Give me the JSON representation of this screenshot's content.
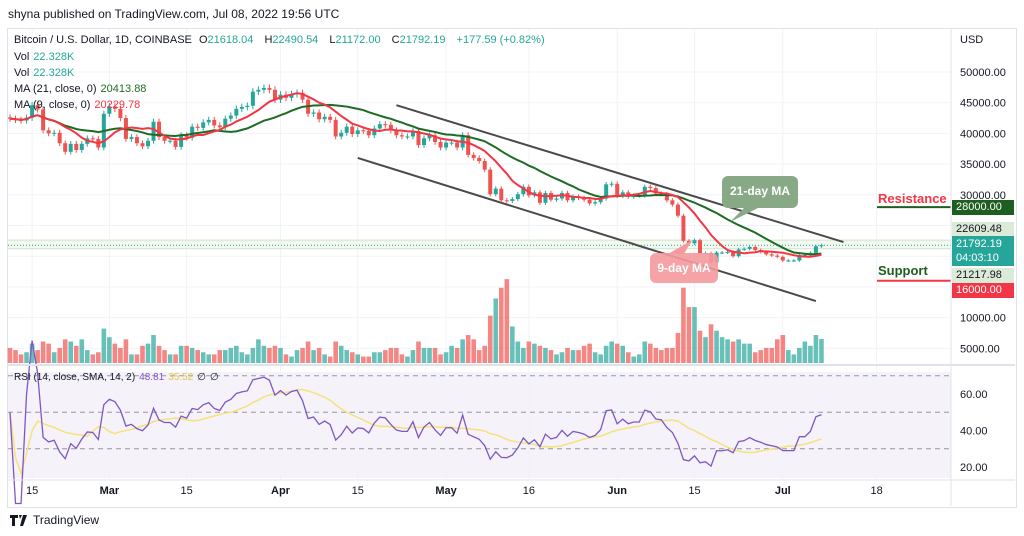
{
  "header": {
    "published": "shyna published on TradingView.com, Jul 08, 2022 19:56 UTC"
  },
  "legend": {
    "symbol": "Bitcoin / U.S. Dollar, 1D, COINBASE",
    "open_label": "O",
    "open": "21618.04",
    "high_label": "H",
    "high": "22490.54",
    "low_label": "L",
    "low": "21172.00",
    "close_label": "C",
    "close": "21792.19",
    "change": "+177.59 (+0.82%)",
    "vol1_label": "Vol",
    "vol1": "22.328K",
    "vol2_label": "Vol",
    "vol2": "22.328K",
    "ma21_label": "MA (21, close, 0)",
    "ma21": "20413.88",
    "ma9_label": "MA (9, close, 0)",
    "ma9": "20229.78",
    "rsi_label": "RSI (14, close, SMA, 14, 2)",
    "rsi": "48.81",
    "rsi_sma": "35.52",
    "rsi_extra1": "∅",
    "rsi_extra2": "∅"
  },
  "price_axis": {
    "currency": "USD",
    "labels": [
      "50000.00",
      "45000.00",
      "40000.00",
      "35000.00",
      "30000.00",
      "10000.00",
      "5000.00"
    ],
    "values": [
      50000,
      45000,
      40000,
      35000,
      30000,
      10000,
      5000
    ]
  },
  "rsi_axis": {
    "labels": [
      "60.00",
      "40.00",
      "20.00"
    ],
    "values": [
      60,
      40,
      20
    ],
    "bands": [
      70,
      50,
      30
    ]
  },
  "price_tags": {
    "resistance": "28000.00",
    "high": "22609.48",
    "last": "21792.19",
    "countdown": "04:03:10",
    "low": "21217.98",
    "support": "16000.00"
  },
  "annotations": {
    "resistance": "Resistance",
    "support": "Support",
    "ma21_callout": "21-day MA",
    "ma9_callout": "9-day MA"
  },
  "colors": {
    "up": "#26a69a",
    "down": "#ef5350",
    "ma21": "#1e6b23",
    "ma9": "#f23645",
    "rsi": "#7e57c2",
    "rsi_sma": "#f5e27a",
    "resistance_line": "#1e5e20",
    "support_line": "#f23645"
  },
  "footer": {
    "brand": "TradingView"
  },
  "chart_data": {
    "type": "candlestick",
    "title": "Bitcoin / U.S. Dollar, 1D, COINBASE",
    "x_ticks": [
      [
        "2022-02-15",
        "15"
      ],
      [
        "2022-03-01",
        "Mar"
      ],
      [
        "2022-03-15",
        "15"
      ],
      [
        "2022-04-01",
        "Apr"
      ],
      [
        "2022-04-15",
        "15"
      ],
      [
        "2022-05-01",
        "May"
      ],
      [
        "2022-05-16",
        "16"
      ],
      [
        "2022-06-01",
        "Jun"
      ],
      [
        "2022-06-15",
        "15"
      ],
      [
        "2022-07-01",
        "Jul"
      ],
      [
        "2022-07-18",
        "18"
      ]
    ],
    "date_range": [
      "2022-02-11",
      "2022-07-08"
    ],
    "ylim": [
      0,
      52000
    ],
    "grid": true,
    "closes": [
      42400,
      42200,
      42100,
      42550,
      44600,
      43900,
      40500,
      40000,
      40100,
      38400,
      37000,
      38300,
      37300,
      38300,
      39200,
      39100,
      37700,
      43200,
      44400,
      44000,
      42500,
      39100,
      39400,
      38400,
      37900,
      38800,
      41900,
      39400,
      38800,
      38800,
      37800,
      39700,
      39300,
      41100,
      40900,
      41800,
      42200,
      41300,
      41000,
      42400,
      42900,
      44000,
      44300,
      44500,
      46800,
      47100,
      47400,
      47100,
      45500,
      46300,
      45800,
      46400,
      46600,
      45500,
      43200,
      43400,
      42300,
      42700,
      42200,
      39500,
      40100,
      41100,
      39900,
      40500,
      40400,
      39700,
      40800,
      41500,
      41400,
      40500,
      39700,
      39500,
      39500,
      40400,
      38100,
      39200,
      39700,
      38600,
      37700,
      38500,
      38500,
      37700,
      39700,
      36500,
      36000,
      35500,
      34100,
      30100,
      31000,
      29100,
      29000,
      29300,
      30100,
      31300,
      29900,
      30400,
      28700,
      30300,
      29200,
      29400,
      30300,
      29100,
      29700,
      29500,
      29200,
      28600,
      28800,
      29400,
      31700,
      31800,
      29800,
      30400,
      29700,
      29900,
      29900,
      31300,
      31100,
      30200,
      30100,
      29100,
      28400,
      26600,
      22500,
      22100,
      22600,
      20400,
      20500,
      19000,
      20600,
      20600,
      20700,
      20000,
      21100,
      21200,
      21500,
      21000,
      20700,
      20300,
      20100,
      19900,
      19300,
      19300,
      19300,
      20200,
      20200,
      20550,
      21618.04,
      21792.19
    ],
    "volume_k": [
      14,
      12,
      8,
      10,
      18,
      12,
      20,
      18,
      10,
      14,
      22,
      20,
      16,
      22,
      12,
      8,
      10,
      32,
      24,
      18,
      14,
      22,
      8,
      8,
      16,
      18,
      26,
      16,
      12,
      8,
      8,
      16,
      16,
      14,
      12,
      10,
      8,
      8,
      12,
      12,
      14,
      16,
      10,
      8,
      14,
      22,
      16,
      14,
      16,
      14,
      8,
      6,
      12,
      14,
      20,
      12,
      14,
      8,
      6,
      20,
      16,
      12,
      10,
      8,
      6,
      6,
      10,
      10,
      12,
      14,
      14,
      8,
      6,
      12,
      20,
      14,
      14,
      14,
      8,
      10,
      16,
      14,
      22,
      26,
      22,
      12,
      16,
      44,
      60,
      70,
      78,
      34,
      20,
      14,
      20,
      18,
      16,
      14,
      12,
      8,
      10,
      14,
      12,
      12,
      16,
      18,
      10,
      8,
      16,
      20,
      18,
      16,
      10,
      6,
      8,
      20,
      18,
      14,
      12,
      14,
      14,
      28,
      70,
      52,
      52,
      30,
      24,
      36,
      30,
      24,
      22,
      20,
      22,
      18,
      18,
      10,
      12,
      14,
      14,
      22,
      26,
      12,
      8,
      14,
      20,
      16,
      26,
      22.328
    ],
    "trendlines": [
      {
        "from": [
          "2022-04-22",
          44600
        ],
        "to": [
          "2022-07-12",
          22300
        ]
      },
      {
        "from": [
          "2022-04-15",
          36000
        ],
        "to": [
          "2022-07-07",
          12700
        ]
      }
    ],
    "levels": {
      "resistance": 28000,
      "support": 16000,
      "high": 22609.48,
      "low": 21217.98,
      "last": 21792.19
    }
  }
}
